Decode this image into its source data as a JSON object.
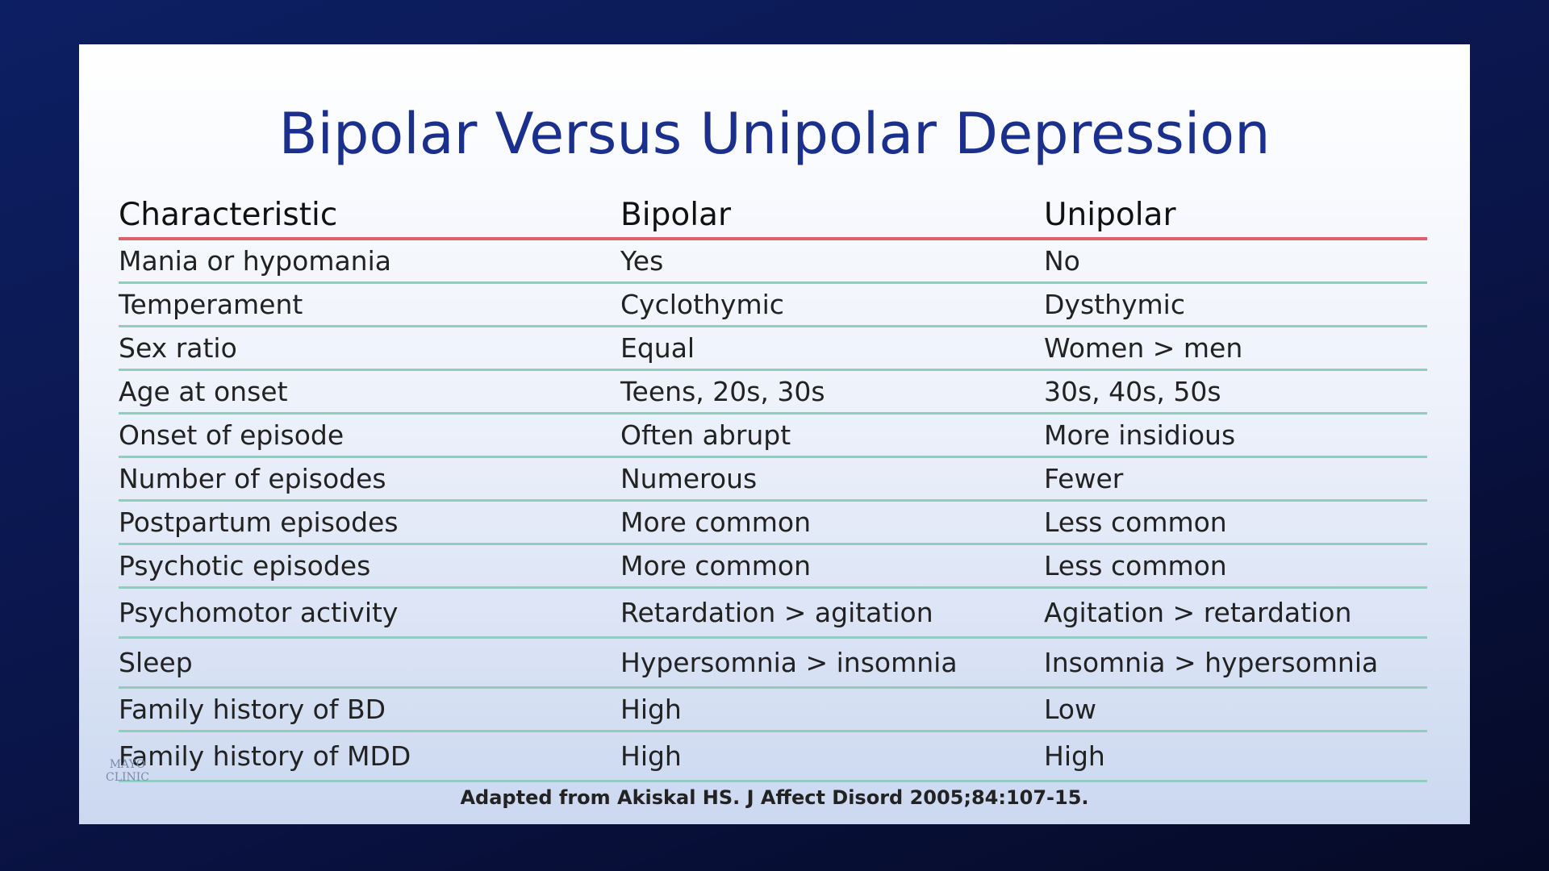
{
  "header": {
    "title": "Bipolar Versus Unipolar Depression"
  },
  "table": {
    "columns": [
      "Characteristic",
      "Bipolar",
      "Unipolar"
    ],
    "rows": [
      [
        "Mania or hypomania",
        "Yes",
        "No"
      ],
      [
        "Temperament",
        "Cyclothymic",
        "Dysthymic"
      ],
      [
        "Sex ratio",
        "Equal",
        "Women > men"
      ],
      [
        "Age at onset",
        "Teens, 20s, 30s",
        "30s, 40s, 50s"
      ],
      [
        "Onset of episode",
        "Often abrupt",
        "More insidious"
      ],
      [
        "Number of episodes",
        "Numerous",
        "Fewer"
      ],
      [
        "Postpartum episodes",
        "More common",
        "Less common"
      ],
      [
        "Psychotic episodes",
        "More common",
        "Less common"
      ],
      [
        "Psychomotor activity",
        "Retardation > agitation",
        "Agitation > retardation"
      ],
      [
        "Sleep",
        "Hypersomnia > insomnia",
        "Insomnia > hypersomnia"
      ],
      [
        "Family history of BD",
        "High",
        "Low"
      ],
      [
        "Family history of MDD",
        "High",
        "High"
      ]
    ]
  },
  "footer": {
    "source": "Adapted from Akiskal HS. J Affect Disord 2005;84:107-15.",
    "logo": "MAYO CLINIC"
  }
}
